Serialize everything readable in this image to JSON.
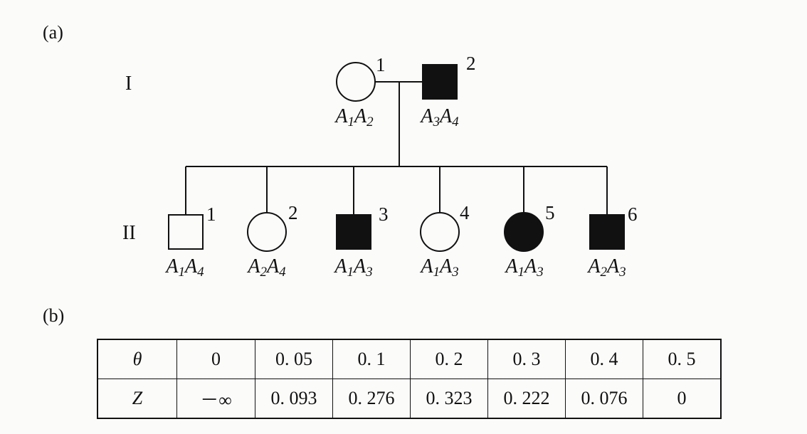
{
  "figure": {
    "part_a_label": "(a)",
    "part_b_label": "(b)",
    "generations": [
      "I",
      "II"
    ],
    "individuals": [
      {
        "id": "I-1",
        "generation": 1,
        "number": "1",
        "sex": "female",
        "affected": false,
        "genotype": [
          "A",
          "1",
          "A",
          "2"
        ]
      },
      {
        "id": "I-2",
        "generation": 1,
        "number": "2",
        "sex": "male",
        "affected": true,
        "genotype": [
          "A",
          "3",
          "A",
          "4"
        ]
      },
      {
        "id": "II-1",
        "generation": 2,
        "number": "1",
        "sex": "male",
        "affected": false,
        "genotype": [
          "A",
          "1",
          "A",
          "4"
        ]
      },
      {
        "id": "II-2",
        "generation": 2,
        "number": "2",
        "sex": "female",
        "affected": false,
        "genotype": [
          "A",
          "2",
          "A",
          "4"
        ]
      },
      {
        "id": "II-3",
        "generation": 2,
        "number": "3",
        "sex": "male",
        "affected": true,
        "genotype": [
          "A",
          "1",
          "A",
          "3"
        ]
      },
      {
        "id": "II-4",
        "generation": 2,
        "number": "4",
        "sex": "female",
        "affected": false,
        "genotype": [
          "A",
          "1",
          "A",
          "3"
        ]
      },
      {
        "id": "II-5",
        "generation": 2,
        "number": "5",
        "sex": "female",
        "affected": true,
        "genotype": [
          "A",
          "1",
          "A",
          "3"
        ]
      },
      {
        "id": "II-6",
        "generation": 2,
        "number": "6",
        "sex": "male",
        "affected": true,
        "genotype": [
          "A",
          "2",
          "A",
          "3"
        ]
      }
    ],
    "colors": {
      "ink": "#111111",
      "background": "#fbfbfa"
    }
  },
  "table": {
    "rows": [
      {
        "label": "θ",
        "cells": [
          "0",
          "0. 05",
          "0. 1",
          "0. 2",
          "0. 3",
          "0. 4",
          "0. 5"
        ]
      },
      {
        "label": "Z",
        "cells": [
          "－∞",
          "0. 093",
          "0. 276",
          "0. 323",
          "0. 222",
          "0. 076",
          "0"
        ]
      }
    ]
  }
}
